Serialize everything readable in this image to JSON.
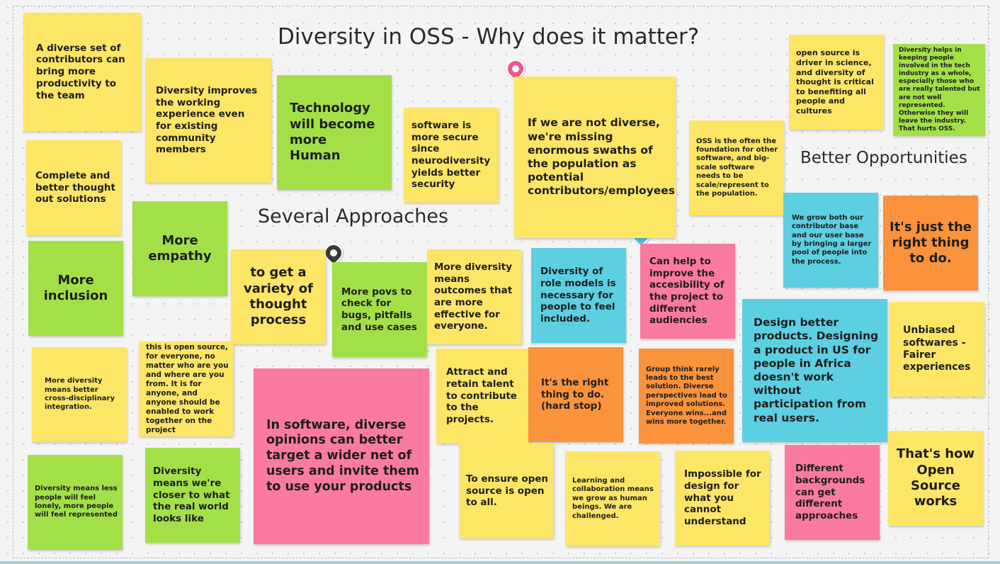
{
  "board": {
    "title": "Diversity in OSS - Why does it matter?",
    "heading_approaches": "Several Approaches",
    "heading_opportunities": "Better Opportunities"
  },
  "colors": {
    "yellow": "#fde566",
    "green": "#a3e048",
    "pink": "#fb7aa0",
    "cyan": "#5ccfe0",
    "orange": "#fb923c",
    "pin_pink": "#f0568a",
    "pin_cyan": "#4bc3d6",
    "pin_dark": "#3a3a3a"
  },
  "notes": [
    "A diverse set of contributors can bring more productivity to the team",
    "Diversity improves the working experience even for existing community members",
    "Technology will become more Human",
    "software is more secure since neurodiversity yields better security",
    "If we are not diverse, we're missing enormous swaths of the population as potential contributors/employees",
    "open source is driver in science, and diversity of thought is critical to benefiting all people and cultures",
    "Diversity helps in keeping people involved in the tech industry as a whole, especially those who are really talented but are not well represented. Otherwise they will leave the industry. That hurts OSS.",
    "OSS is the often the foundation for other software, and big-scale software needs to be scale/represent to the population.",
    "Complete and better thought out solutions",
    "More empathy",
    "More inclusion",
    "to get a variety of thought process",
    "More povs to check for bugs, pitfalls and use cases",
    "More diversity means outcomes that are more effective for everyone.",
    "Diversity of role models is necessary for people to feel included.",
    "Can help to improve the accesibility of the project to different audiencies",
    "We grow both our contributor base and our user base by bringing a larger pool of people into the process.",
    "It's just the right thing to do.",
    "More diversity means better cross-disciplinary integration.",
    "this is open source, for everyone, no matter who are you and where are you from. It is for anyone, and anyone should be enabled to work together on the project",
    "In software, diverse opinions can better target a wider net of users and invite them to use your products",
    "Attract and retain talent to contribute to the projects.",
    "It's the right thing to do. (hard stop)",
    "Group think rarely leads to the best solution. Diverse perspectives lead to improved solutions. Everyone wins...and wins more together.",
    "Design better products. Designing a product in US for people in Africa doesn't work without participation from real users.",
    "Unbiased softwares - Fairer experiences",
    "Diversity means less people will feel lonely, more people will feel represented",
    "Diversity means we're closer to what the real world looks like",
    "To ensure open source is open to all.",
    "Learning and collaboration means we grow as human beings. We are challenged.",
    "Impossible for design for what you cannot understand",
    "Different backgrounds can get different approaches",
    "That's how Open Source works"
  ]
}
